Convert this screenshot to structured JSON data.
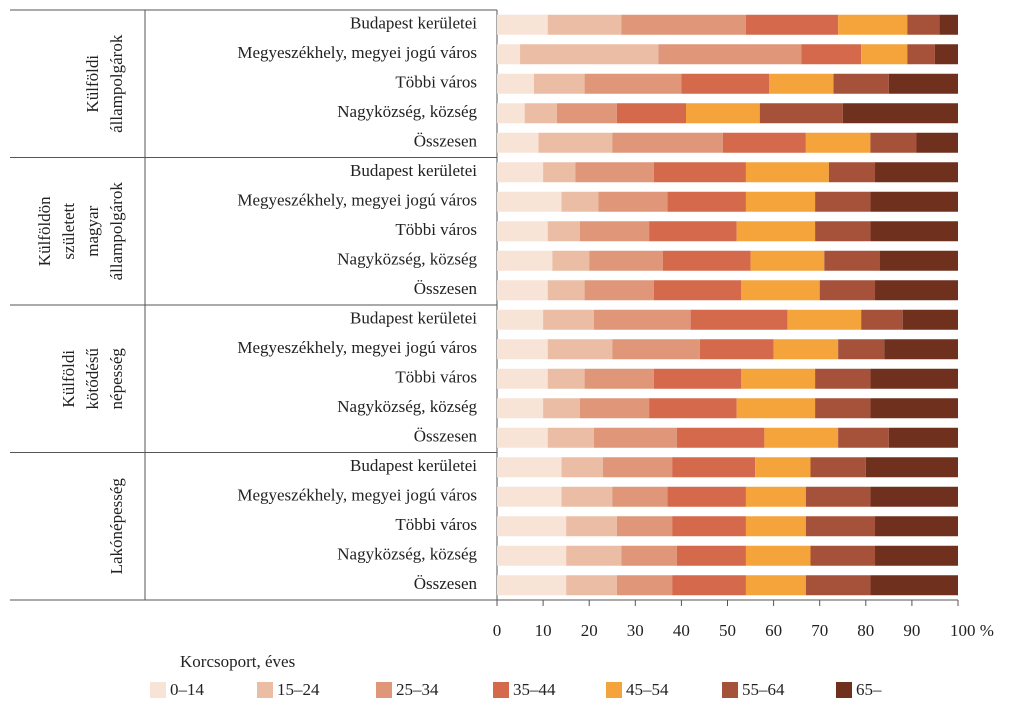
{
  "chart_data": {
    "type": "stacked-bar-horizontal",
    "groups": [
      {
        "label": [
          "Külföldi",
          "állampolgárok"
        ],
        "categories": [
          "Budapest kerületei",
          "Megyeszékhely, megyei jogú város",
          "Többi város",
          "Nagyközség, község",
          "Összesen"
        ]
      },
      {
        "label": [
          "Külföldön",
          "született",
          "magyar",
          "állampolgárok"
        ],
        "categories": [
          "Budapest kerületei",
          "Megyeszékhely, megyei jogú város",
          "Többi város",
          "Nagyközség, község",
          "Összesen"
        ]
      },
      {
        "label": [
          "Külföldi",
          "kötődésű",
          "népesség"
        ],
        "categories": [
          "Budapest kerületei",
          "Megyeszékhely, megyei jogú város",
          "Többi város",
          "Nagyközség, község",
          "Összesen"
        ]
      },
      {
        "label": [
          "Lakónépesség"
        ],
        "categories": [
          "Budapest kerületei",
          "Megyeszékhely, megyei jogú város",
          "Többi város",
          "Nagyközség, község",
          "Összesen"
        ]
      }
    ],
    "legend_title": "Korcsoport, éves",
    "series": [
      {
        "name": "0–14",
        "color": "#f8e4d7",
        "values": [
          11,
          5,
          8,
          6,
          9,
          10,
          14,
          11,
          12,
          11,
          10,
          11,
          11,
          10,
          11,
          14,
          14,
          15,
          15,
          15
        ]
      },
      {
        "name": "15–24",
        "color": "#ecbda5",
        "values": [
          16,
          30,
          11,
          7,
          16,
          7,
          8,
          7,
          8,
          8,
          11,
          14,
          8,
          8,
          10,
          9,
          11,
          11,
          12,
          11
        ]
      },
      {
        "name": "25–34",
        "color": "#df9679",
        "values": [
          27,
          31,
          21,
          13,
          24,
          17,
          15,
          15,
          16,
          15,
          21,
          19,
          15,
          15,
          18,
          15,
          12,
          12,
          12,
          12
        ]
      },
      {
        "name": "35–44",
        "color": "#d4694b",
        "values": [
          20,
          13,
          19,
          15,
          18,
          20,
          17,
          19,
          19,
          19,
          21,
          16,
          19,
          19,
          19,
          18,
          17,
          16,
          15,
          16
        ]
      },
      {
        "name": "45–54",
        "color": "#f4a43b",
        "values": [
          15,
          10,
          14,
          16,
          14,
          18,
          15,
          17,
          16,
          17,
          16,
          14,
          16,
          17,
          16,
          12,
          13,
          13,
          14,
          13
        ]
      },
      {
        "name": "55–64",
        "color": "#a6523b",
        "values": [
          7,
          6,
          12,
          18,
          10,
          10,
          12,
          12,
          12,
          12,
          9,
          10,
          12,
          12,
          11,
          12,
          14,
          15,
          14,
          14
        ]
      },
      {
        "name": "65–",
        "color": "#6f301d",
        "values": [
          4,
          5,
          15,
          25,
          9,
          18,
          19,
          19,
          17,
          18,
          12,
          16,
          19,
          19,
          15,
          20,
          19,
          18,
          18,
          19
        ]
      }
    ],
    "xlim": [
      0,
      100
    ],
    "xticks": [
      0,
      10,
      20,
      30,
      40,
      50,
      60,
      70,
      80,
      90,
      {
        "value": 100,
        "label": "100 %"
      }
    ]
  }
}
